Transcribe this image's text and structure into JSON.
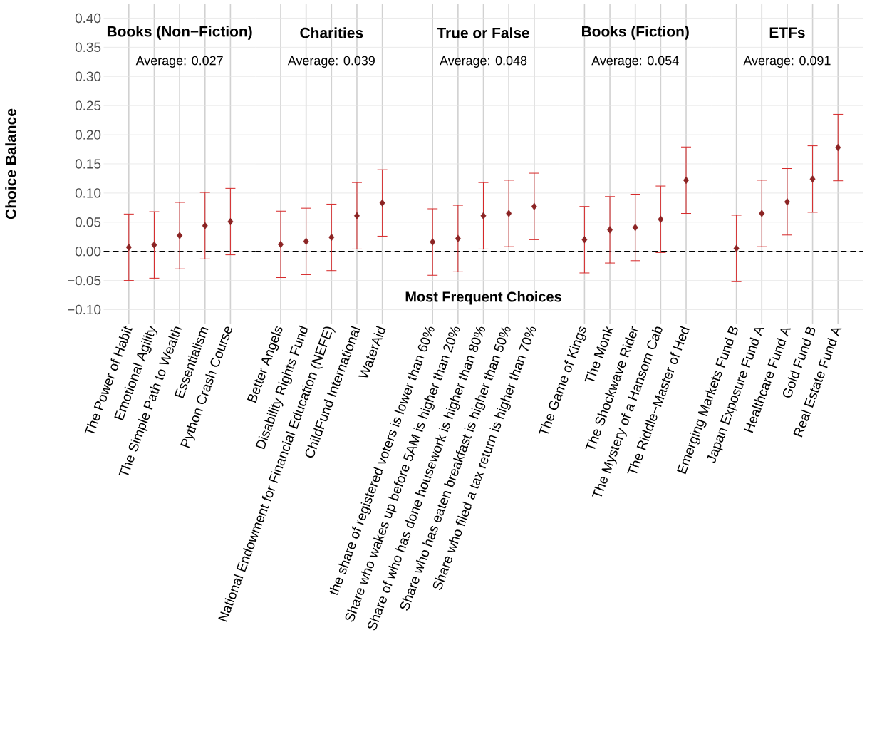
{
  "chart_data": [
    {
      "type": "scatter",
      "title": "Books (Non−Fiction)",
      "subtitle": "Average: 0.027",
      "ylabel": "Choice Balance",
      "categories": [
        "The Power of Habit",
        "Emotional Agility",
        "The Simple Path to Wealth",
        "Essentialism",
        "Python Crash Course"
      ],
      "values": [
        0.007,
        0.011,
        0.027,
        0.044,
        0.051
      ],
      "errors": [
        0.057,
        0.057,
        0.057,
        0.057,
        0.057
      ],
      "color": "#8b2323",
      "marker": "diamond",
      "grid": true,
      "ylim": [
        -0.125,
        0.425
      ],
      "yticks": [
        {
          "value": -0.1,
          "label": "−0.10"
        },
        {
          "value": -0.05,
          "label": "−0.05"
        },
        {
          "value": 0,
          "label": "0.00"
        },
        {
          "value": 0.05,
          "label": "0.05"
        },
        {
          "value": 0.1,
          "label": "0.10"
        },
        {
          "value": 0.15,
          "label": "0.15"
        },
        {
          "value": 0.2,
          "label": "0.20"
        },
        {
          "value": 0.25,
          "label": "0.25"
        },
        {
          "value": 0.3,
          "label": "0.30"
        },
        {
          "value": 0.35,
          "label": "0.35"
        },
        {
          "value": 0.4,
          "label": "0.40"
        }
      ],
      "ref_lines": [
        {
          "axis": "y",
          "value": 0,
          "color": "#000000",
          "line_style": "dashed"
        }
      ]
    },
    {
      "type": "scatter",
      "title": "Charities",
      "subtitle": "Average: 0.039",
      "categories": [
        "Better Angels",
        "Disability Rights Fund",
        "National Endowment for Financial Education (NEFE)",
        "ChildFund International",
        "WaterAid"
      ],
      "values": [
        0.012,
        0.017,
        0.024,
        0.061,
        0.083
      ],
      "errors": [
        0.057,
        0.057,
        0.057,
        0.057,
        0.057
      ],
      "color": "#8b2323",
      "marker": "diamond",
      "grid": true,
      "tick_labels": "x",
      "ylim": [
        -0.125,
        0.425
      ],
      "yticks": [
        {
          "value": -0.1,
          "label": null
        },
        {
          "value": -0.05,
          "label": null
        },
        {
          "value": 0,
          "label": null
        },
        {
          "value": 0.05,
          "label": null
        },
        {
          "value": 0.1,
          "label": null
        },
        {
          "value": 0.15,
          "label": null
        },
        {
          "value": 0.2,
          "label": null
        },
        {
          "value": 0.25,
          "label": null
        },
        {
          "value": 0.3,
          "label": null
        },
        {
          "value": 0.35,
          "label": null
        },
        {
          "value": 0.4,
          "label": null
        }
      ],
      "ref_lines": [
        {
          "axis": "y",
          "value": 0,
          "color": "#000000",
          "line_style": "dashed"
        }
      ]
    },
    {
      "type": "scatter",
      "title": "True or False",
      "subtitle": "Average: 0.048",
      "xlabel": "Most Frequent Choices",
      "categories": [
        "the share of registered voters is lower than 60%",
        "Share who wakes up before 5AM is higher than 20%",
        "Share of who has done housework is higher than 80%",
        "Share who has eaten breakfast is higher than 50%",
        "Share who filed a tax return is higher than 70%"
      ],
      "values": [
        0.016,
        0.022,
        0.061,
        0.065,
        0.077
      ],
      "errors": [
        0.057,
        0.057,
        0.057,
        0.057,
        0.057
      ],
      "color": "#8b2323",
      "marker": "diamond",
      "grid": true,
      "tick_labels": "x",
      "ylim": [
        -0.125,
        0.425
      ],
      "yticks": [
        {
          "value": -0.1,
          "label": null
        },
        {
          "value": -0.05,
          "label": null
        },
        {
          "value": 0,
          "label": null
        },
        {
          "value": 0.05,
          "label": null
        },
        {
          "value": 0.1,
          "label": null
        },
        {
          "value": 0.15,
          "label": null
        },
        {
          "value": 0.2,
          "label": null
        },
        {
          "value": 0.25,
          "label": null
        },
        {
          "value": 0.3,
          "label": null
        },
        {
          "value": 0.35,
          "label": null
        },
        {
          "value": 0.4,
          "label": null
        }
      ],
      "ref_lines": [
        {
          "axis": "y",
          "value": 0,
          "color": "#000000",
          "line_style": "dashed"
        }
      ]
    },
    {
      "type": "scatter",
      "title": "Books (Fiction)",
      "subtitle": "Average: 0.054",
      "categories": [
        "The Game of Kings",
        "The Monk",
        "The Shockwave Rider",
        "The Mystery of a Hansom Cab",
        "The Riddle−Master of Hed"
      ],
      "values": [
        0.02,
        0.037,
        0.041,
        0.055,
        0.122
      ],
      "errors": [
        0.057,
        0.057,
        0.057,
        0.057,
        0.057
      ],
      "color": "#8b2323",
      "marker": "diamond",
      "grid": true,
      "tick_labels": "x",
      "ylim": [
        -0.125,
        0.425
      ],
      "yticks": [
        {
          "value": -0.1,
          "label": null
        },
        {
          "value": -0.05,
          "label": null
        },
        {
          "value": 0,
          "label": null
        },
        {
          "value": 0.05,
          "label": null
        },
        {
          "value": 0.1,
          "label": null
        },
        {
          "value": 0.15,
          "label": null
        },
        {
          "value": 0.2,
          "label": null
        },
        {
          "value": 0.25,
          "label": null
        },
        {
          "value": 0.3,
          "label": null
        },
        {
          "value": 0.35,
          "label": null
        },
        {
          "value": 0.4,
          "label": null
        }
      ],
      "ref_lines": [
        {
          "axis": "y",
          "value": 0,
          "color": "#000000",
          "line_style": "dashed"
        }
      ]
    },
    {
      "type": "scatter",
      "title": "ETFs",
      "subtitle": "Average: 0.091",
      "categories": [
        "Emerging Markets Fund B",
        "Japan Exposure Fund A",
        "Healthcare Fund A",
        "Gold Fund B",
        "Real Estate Fund A"
      ],
      "values": [
        0.005,
        0.065,
        0.085,
        0.124,
        0.178
      ],
      "errors": [
        0.057,
        0.057,
        0.057,
        0.057,
        0.057
      ],
      "color": "#8b2323",
      "marker": "diamond",
      "grid": true,
      "tick_labels": "x",
      "ylim": [
        -0.125,
        0.425
      ],
      "yticks": [
        {
          "value": -0.1,
          "label": null
        },
        {
          "value": -0.05,
          "label": null
        },
        {
          "value": 0,
          "label": null
        },
        {
          "value": 0.05,
          "label": null
        },
        {
          "value": 0.1,
          "label": null
        },
        {
          "value": 0.15,
          "label": null
        },
        {
          "value": 0.2,
          "label": null
        },
        {
          "value": 0.25,
          "label": null
        },
        {
          "value": 0.3,
          "label": null
        },
        {
          "value": 0.35,
          "label": null
        },
        {
          "value": 0.4,
          "label": null
        }
      ],
      "ref_lines": [
        {
          "axis": "y",
          "value": 0,
          "color": "#000000",
          "line_style": "dashed"
        }
      ]
    }
  ]
}
